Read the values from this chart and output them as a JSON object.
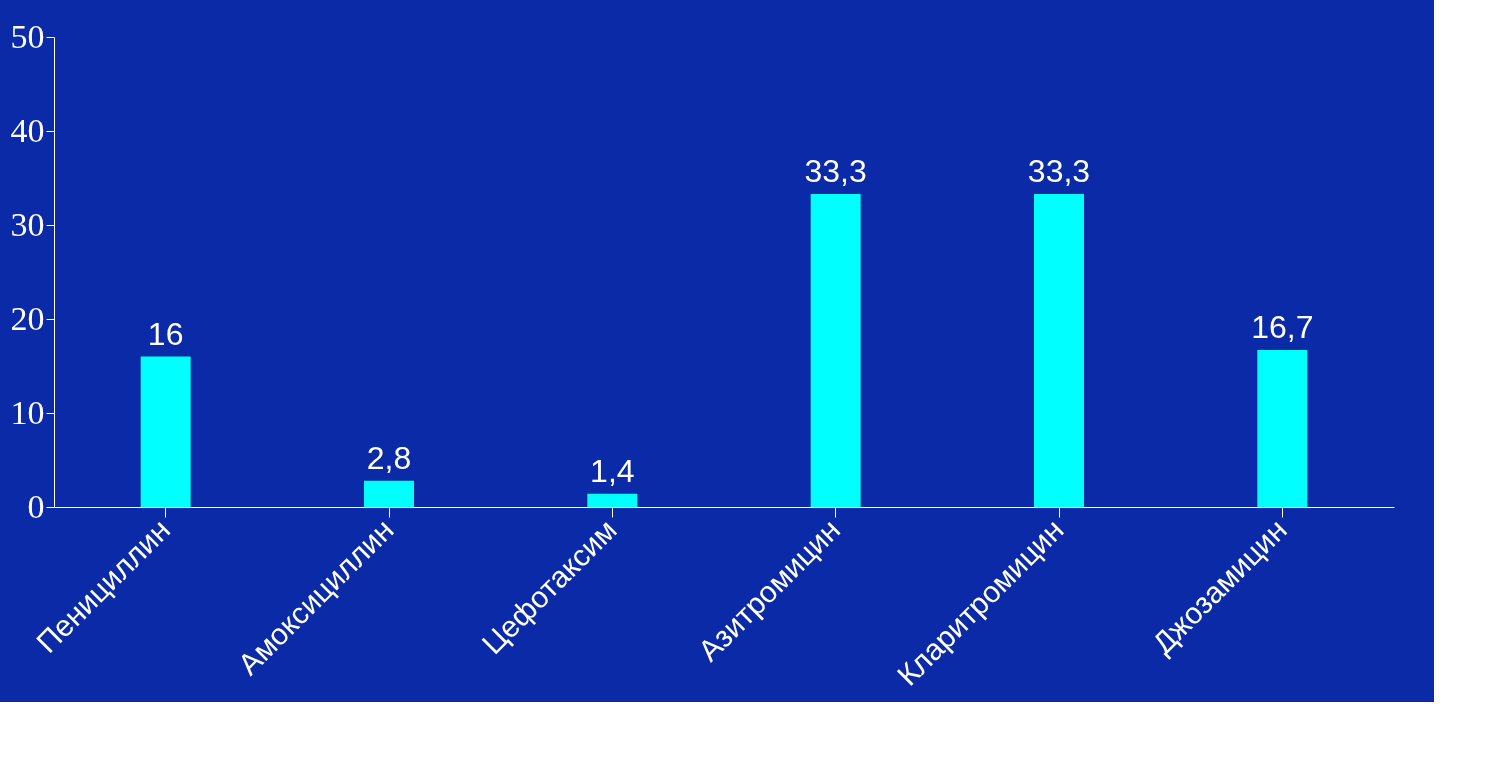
{
  "chart_data": {
    "type": "bar",
    "categories": [
      "Пенициллин",
      "Амоксициллин",
      "Цефотаксим",
      "Азитромицин",
      "Кларитромицин",
      "Джозамицин"
    ],
    "values": [
      16,
      2.8,
      1.4,
      33.3,
      33.3,
      16.7
    ],
    "value_labels": [
      "16",
      "2,8",
      "1,4",
      "33,3",
      "33,3",
      "16,7"
    ],
    "color": "#00ffff",
    "ylim": [
      0,
      50
    ],
    "yticks": [
      0,
      10,
      20,
      30,
      40,
      50
    ],
    "grid": false
  }
}
